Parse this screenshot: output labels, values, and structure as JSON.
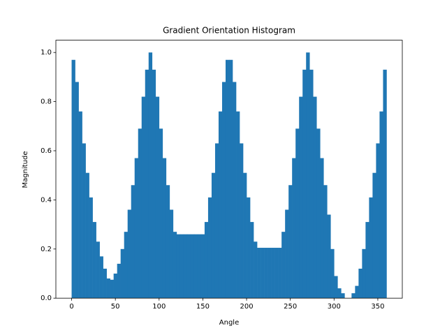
{
  "chart_data": {
    "type": "histogram",
    "title": "Gradient Orientation Histogram",
    "x_label": "Angle",
    "y_label": "Magnitude",
    "color": "#1f77b4",
    "grid": false,
    "bins": [
      0,
      4,
      8,
      12,
      16,
      20,
      24,
      28,
      32,
      36,
      40,
      44,
      48,
      52,
      56,
      60,
      64,
      68,
      72,
      76,
      80,
      84,
      88,
      92,
      96,
      100,
      104,
      108,
      112,
      116,
      120,
      124,
      128,
      132,
      136,
      140,
      144,
      148,
      152,
      156,
      160,
      164,
      168,
      172,
      176,
      180,
      184,
      188,
      192,
      196,
      200,
      204,
      208,
      212,
      216,
      220,
      224,
      228,
      232,
      236,
      240,
      244,
      248,
      252,
      256,
      260,
      264,
      268,
      272,
      276,
      280,
      284,
      288,
      292,
      296,
      300,
      304,
      308,
      312,
      316,
      320,
      324,
      328,
      332,
      336,
      340,
      344,
      348,
      352,
      356,
      360
    ],
    "values": [
      0.97,
      0.88,
      0.76,
      0.63,
      0.51,
      0.41,
      0.31,
      0.23,
      0.17,
      0.12,
      0.08,
      0.075,
      0.1,
      0.14,
      0.2,
      0.27,
      0.36,
      0.46,
      0.57,
      0.69,
      0.82,
      0.93,
      1.0,
      0.93,
      0.82,
      0.69,
      0.57,
      0.46,
      0.36,
      0.27,
      0.26,
      0.26,
      0.26,
      0.26,
      0.26,
      0.26,
      0.26,
      0.26,
      0.31,
      0.41,
      0.51,
      0.63,
      0.76,
      0.88,
      0.97,
      0.97,
      0.88,
      0.76,
      0.63,
      0.51,
      0.41,
      0.31,
      0.23,
      0.205,
      0.205,
      0.205,
      0.205,
      0.205,
      0.205,
      0.205,
      0.27,
      0.36,
      0.46,
      0.57,
      0.69,
      0.82,
      0.93,
      1.0,
      0.93,
      0.82,
      0.69,
      0.57,
      0.46,
      0.34,
      0.2,
      0.09,
      0.04,
      0.02,
      0,
      0,
      0.02,
      0.05,
      0.12,
      0.2,
      0.31,
      0.41,
      0.51,
      0.63,
      0.76,
      0.93
    ],
    "xlim": [
      -18,
      378
    ],
    "xticks": [
      0,
      50,
      100,
      150,
      200,
      250,
      300,
      350
    ],
    "ylim": [
      0,
      1.05
    ],
    "yticks": [
      {
        "value": 0,
        "label": "0.0"
      },
      0.2,
      0.4,
      0.6,
      0.8,
      {
        "value": 1,
        "label": "1.0"
      }
    ]
  }
}
